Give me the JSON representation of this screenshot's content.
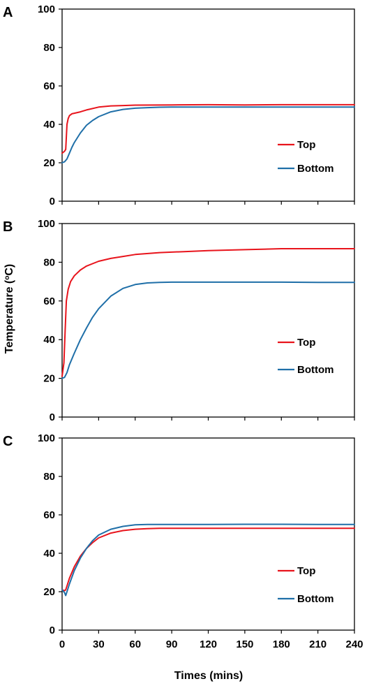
{
  "ylabel_text": "Temperature (",
  "ylabel_sup": "o",
  "ylabel_unit": "C)",
  "xlabel": "Times (mins)",
  "colors": {
    "top": "#e8141c",
    "bottom": "#1f6fa8"
  },
  "chart_data": [
    {
      "type": "line",
      "panel": "A",
      "xlim": [
        0,
        240
      ],
      "ylim": [
        0,
        100
      ],
      "xticks": [
        0,
        30,
        60,
        90,
        120,
        150,
        180,
        210,
        240
      ],
      "yticks": [
        0,
        20,
        40,
        60,
        80,
        100
      ],
      "show_x_tick_labels": false,
      "grid": false,
      "legend": "right",
      "series": [
        {
          "name": "Top",
          "color": "#e8141c",
          "x": [
            0,
            2,
            3,
            4,
            5,
            6,
            8,
            10,
            15,
            20,
            30,
            40,
            50,
            60,
            90,
            120,
            150,
            180,
            210,
            240
          ],
          "y": [
            25,
            26,
            27,
            40,
            43,
            44.5,
            45.5,
            45.8,
            46.5,
            47.5,
            49,
            49.6,
            49.8,
            50,
            50.1,
            50.2,
            50.1,
            50.2,
            50.2,
            50.2
          ]
        },
        {
          "name": "Bottom",
          "color": "#1f6fa8",
          "x": [
            0,
            2,
            4,
            6,
            8,
            10,
            15,
            20,
            25,
            30,
            40,
            50,
            60,
            70,
            80,
            90,
            120,
            150,
            180,
            210,
            240
          ],
          "y": [
            20,
            20.5,
            22,
            25,
            28,
            30.5,
            35.5,
            39.5,
            42,
            44,
            46.5,
            47.8,
            48.4,
            48.7,
            48.9,
            49,
            49,
            49,
            49,
            49,
            49
          ]
        }
      ]
    },
    {
      "type": "line",
      "panel": "B",
      "xlim": [
        0,
        240
      ],
      "ylim": [
        0,
        100
      ],
      "xticks": [
        0,
        30,
        60,
        90,
        120,
        150,
        180,
        210,
        240
      ],
      "yticks": [
        0,
        20,
        40,
        60,
        80,
        100
      ],
      "show_x_tick_labels": false,
      "grid": false,
      "legend": "right",
      "series": [
        {
          "name": "Top",
          "color": "#e8141c",
          "x": [
            0,
            1.5,
            2.5,
            3.5,
            5,
            7,
            10,
            15,
            20,
            30,
            40,
            50,
            60,
            80,
            100,
            120,
            150,
            180,
            210,
            240
          ],
          "y": [
            21,
            28,
            45,
            60,
            66,
            70,
            73,
            76,
            78,
            80.5,
            82,
            83,
            84,
            85,
            85.5,
            86,
            86.5,
            87,
            87,
            87
          ]
        },
        {
          "name": "Bottom",
          "color": "#1f6fa8",
          "x": [
            0,
            2,
            4,
            6,
            10,
            15,
            20,
            25,
            30,
            40,
            50,
            60,
            70,
            80,
            90,
            120,
            150,
            180,
            210,
            240
          ],
          "y": [
            20,
            20.5,
            23,
            27,
            33,
            40,
            46,
            51.5,
            56,
            62.5,
            66.5,
            68.5,
            69.3,
            69.6,
            69.7,
            69.7,
            69.7,
            69.7,
            69.6,
            69.6
          ]
        }
      ]
    },
    {
      "type": "line",
      "panel": "C",
      "xlim": [
        0,
        240
      ],
      "ylim": [
        0,
        100
      ],
      "xticks": [
        0,
        30,
        60,
        90,
        120,
        150,
        180,
        210,
        240
      ],
      "yticks": [
        0,
        20,
        40,
        60,
        80,
        100
      ],
      "show_x_tick_labels": true,
      "grid": false,
      "legend": "right",
      "series": [
        {
          "name": "Top",
          "color": "#e8141c",
          "x": [
            0,
            2,
            3,
            4,
            6,
            10,
            15,
            20,
            25,
            30,
            40,
            50,
            60,
            70,
            80,
            90,
            120,
            150,
            180,
            210,
            240
          ],
          "y": [
            21,
            20.5,
            21,
            23,
            27,
            33,
            38.5,
            42.5,
            45.5,
            48,
            50.5,
            51.8,
            52.5,
            52.8,
            53,
            53,
            53,
            53,
            53,
            53,
            53
          ]
        },
        {
          "name": "Bottom",
          "color": "#1f6fa8",
          "x": [
            0,
            2,
            3,
            4,
            6,
            10,
            15,
            20,
            25,
            30,
            40,
            50,
            60,
            70,
            80,
            90,
            120,
            150,
            180,
            210,
            240
          ],
          "y": [
            21,
            19.5,
            18,
            20,
            24,
            31,
            37.5,
            42.5,
            46.5,
            49.5,
            52.5,
            54,
            54.8,
            55,
            55,
            55,
            55,
            55.1,
            55.1,
            55,
            55
          ]
        }
      ]
    }
  ]
}
